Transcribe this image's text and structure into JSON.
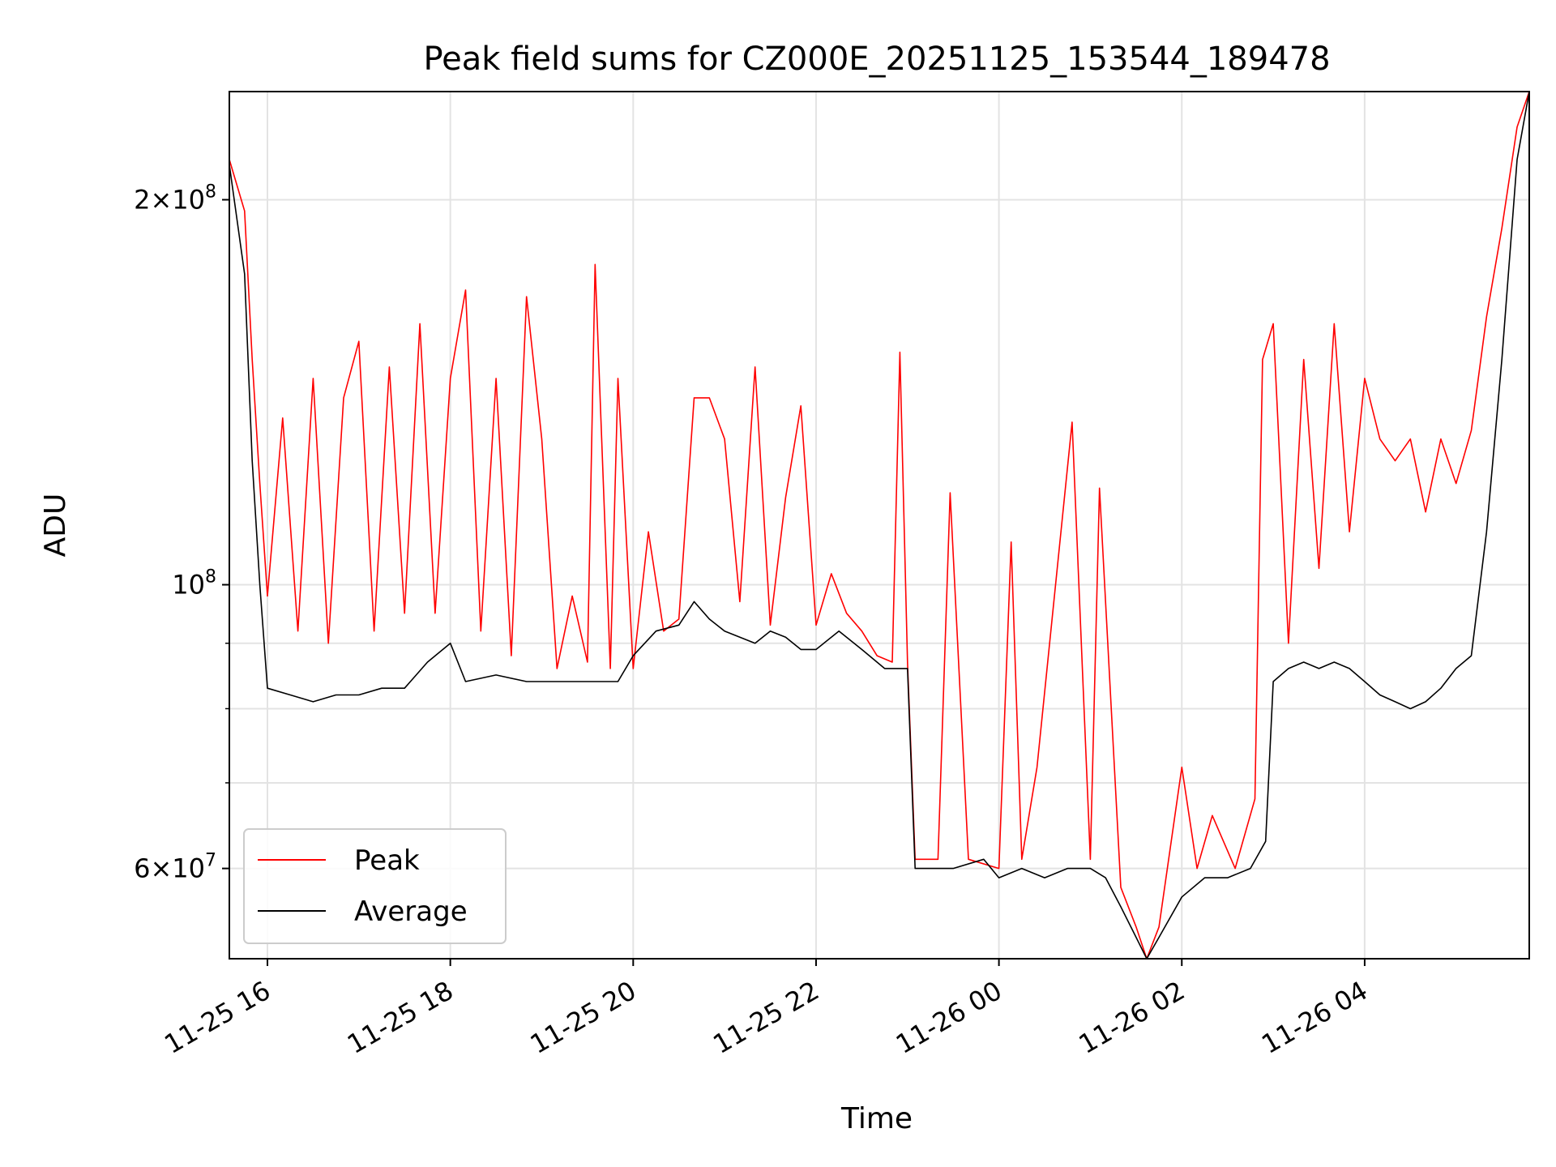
{
  "chart_data": {
    "type": "line",
    "title": "Peak field sums for CZ000E_20251125_153544_189478",
    "xlabel": "Time",
    "ylabel": "ADU",
    "yscale": "log",
    "grid": true,
    "legend_position": "lower-left",
    "xlim": [
      "2025-11-25T15:35",
      "2025-11-26T05:48"
    ],
    "ylim": [
      51000000,
      243000000
    ],
    "x_ticks": [
      "2025-11-25T16:00",
      "2025-11-25T18:00",
      "2025-11-25T20:00",
      "2025-11-25T22:00",
      "2025-11-26T00:00",
      "2025-11-26T02:00",
      "2025-11-26T04:00"
    ],
    "x_tick_labels": [
      "11-25 16",
      "11-25 18",
      "11-25 20",
      "11-25 22",
      "11-26 00",
      "11-26 02",
      "11-26 04"
    ],
    "y_major_ticks": [
      {
        "value": 60000000,
        "mantissa": "6",
        "base": "10",
        "exp": "7"
      },
      {
        "value": 100000000,
        "mantissa": "",
        "base": "10",
        "exp": "8"
      },
      {
        "value": 200000000,
        "mantissa": "2",
        "base": "10",
        "exp": "8"
      }
    ],
    "y_minor_ticks": [
      70000000,
      80000000,
      90000000
    ],
    "series": [
      {
        "name": "Peak",
        "color": "#ff0000",
        "points": [
          [
            "2025-11-25T15:35",
            215000000
          ],
          [
            "2025-11-25T15:45",
            196000000
          ],
          [
            "2025-11-25T15:50",
            150000000
          ],
          [
            "2025-11-25T15:55",
            120000000
          ],
          [
            "2025-11-25T16:00",
            98000000
          ],
          [
            "2025-11-25T16:10",
            135000000
          ],
          [
            "2025-11-25T16:20",
            92000000
          ],
          [
            "2025-11-25T16:30",
            145000000
          ],
          [
            "2025-11-25T16:40",
            90000000
          ],
          [
            "2025-11-25T16:50",
            140000000
          ],
          [
            "2025-11-25T17:00",
            155000000
          ],
          [
            "2025-11-25T17:10",
            92000000
          ],
          [
            "2025-11-25T17:20",
            148000000
          ],
          [
            "2025-11-25T17:30",
            95000000
          ],
          [
            "2025-11-25T17:40",
            160000000
          ],
          [
            "2025-11-25T17:50",
            95000000
          ],
          [
            "2025-11-25T18:00",
            145000000
          ],
          [
            "2025-11-25T18:10",
            170000000
          ],
          [
            "2025-11-25T18:20",
            92000000
          ],
          [
            "2025-11-25T18:30",
            145000000
          ],
          [
            "2025-11-25T18:40",
            88000000
          ],
          [
            "2025-11-25T18:50",
            168000000
          ],
          [
            "2025-11-25T19:00",
            130000000
          ],
          [
            "2025-11-25T19:10",
            86000000
          ],
          [
            "2025-11-25T19:20",
            98000000
          ],
          [
            "2025-11-25T19:30",
            87000000
          ],
          [
            "2025-11-25T19:35",
            178000000
          ],
          [
            "2025-11-25T19:45",
            86000000
          ],
          [
            "2025-11-25T19:50",
            145000000
          ],
          [
            "2025-11-25T20:00",
            86000000
          ],
          [
            "2025-11-25T20:10",
            110000000
          ],
          [
            "2025-11-25T20:20",
            92000000
          ],
          [
            "2025-11-25T20:30",
            94000000
          ],
          [
            "2025-11-25T20:40",
            140000000
          ],
          [
            "2025-11-25T20:50",
            140000000
          ],
          [
            "2025-11-25T21:00",
            130000000
          ],
          [
            "2025-11-25T21:10",
            97000000
          ],
          [
            "2025-11-25T21:20",
            148000000
          ],
          [
            "2025-11-25T21:30",
            93000000
          ],
          [
            "2025-11-25T21:40",
            117000000
          ],
          [
            "2025-11-25T21:50",
            138000000
          ],
          [
            "2025-11-25T22:00",
            93000000
          ],
          [
            "2025-11-25T22:10",
            102000000
          ],
          [
            "2025-11-25T22:20",
            95000000
          ],
          [
            "2025-11-25T22:30",
            92000000
          ],
          [
            "2025-11-25T22:40",
            88000000
          ],
          [
            "2025-11-25T22:50",
            87000000
          ],
          [
            "2025-11-25T22:55",
            152000000
          ],
          [
            "2025-11-25T23:00",
            87000000
          ],
          [
            "2025-11-25T23:05",
            61000000
          ],
          [
            "2025-11-25T23:20",
            61000000
          ],
          [
            "2025-11-25T23:28",
            118000000
          ],
          [
            "2025-11-25T23:40",
            61000000
          ],
          [
            "2025-11-26T00:00",
            60000000
          ],
          [
            "2025-11-26T00:08",
            108000000
          ],
          [
            "2025-11-26T00:15",
            61000000
          ],
          [
            "2025-11-26T00:25",
            72000000
          ],
          [
            "2025-11-26T00:48",
            134000000
          ],
          [
            "2025-11-26T01:00",
            61000000
          ],
          [
            "2025-11-26T01:06",
            119000000
          ],
          [
            "2025-11-26T01:20",
            58000000
          ],
          [
            "2025-11-26T01:30",
            54000000
          ],
          [
            "2025-11-26T01:37",
            51000000
          ],
          [
            "2025-11-26T01:45",
            54000000
          ],
          [
            "2025-11-26T02:00",
            72000000
          ],
          [
            "2025-11-26T02:10",
            60000000
          ],
          [
            "2025-11-26T02:20",
            66000000
          ],
          [
            "2025-11-26T02:35",
            60000000
          ],
          [
            "2025-11-26T02:48",
            68000000
          ],
          [
            "2025-11-26T02:53",
            150000000
          ],
          [
            "2025-11-26T03:00",
            160000000
          ],
          [
            "2025-11-26T03:10",
            90000000
          ],
          [
            "2025-11-26T03:20",
            150000000
          ],
          [
            "2025-11-26T03:30",
            103000000
          ],
          [
            "2025-11-26T03:40",
            160000000
          ],
          [
            "2025-11-26T03:50",
            110000000
          ],
          [
            "2025-11-26T04:00",
            145000000
          ],
          [
            "2025-11-26T04:10",
            130000000
          ],
          [
            "2025-11-26T04:20",
            125000000
          ],
          [
            "2025-11-26T04:30",
            130000000
          ],
          [
            "2025-11-26T04:40",
            114000000
          ],
          [
            "2025-11-26T04:50",
            130000000
          ],
          [
            "2025-11-26T05:00",
            120000000
          ],
          [
            "2025-11-26T05:10",
            132000000
          ],
          [
            "2025-11-26T05:20",
            162000000
          ],
          [
            "2025-11-26T05:30",
            190000000
          ],
          [
            "2025-11-26T05:40",
            228000000
          ],
          [
            "2025-11-26T05:48",
            243000000
          ]
        ]
      },
      {
        "name": "Average",
        "color": "#000000",
        "points": [
          [
            "2025-11-25T15:35",
            213000000
          ],
          [
            "2025-11-25T15:45",
            175000000
          ],
          [
            "2025-11-25T15:50",
            125000000
          ],
          [
            "2025-11-25T15:55",
            100000000
          ],
          [
            "2025-11-25T16:00",
            83000000
          ],
          [
            "2025-11-25T16:15",
            82000000
          ],
          [
            "2025-11-25T16:30",
            81000000
          ],
          [
            "2025-11-25T16:45",
            82000000
          ],
          [
            "2025-11-25T17:00",
            82000000
          ],
          [
            "2025-11-25T17:15",
            83000000
          ],
          [
            "2025-11-25T17:30",
            83000000
          ],
          [
            "2025-11-25T17:45",
            87000000
          ],
          [
            "2025-11-25T18:00",
            90000000
          ],
          [
            "2025-11-25T18:10",
            84000000
          ],
          [
            "2025-11-25T18:30",
            85000000
          ],
          [
            "2025-11-25T18:50",
            84000000
          ],
          [
            "2025-11-25T19:00",
            84000000
          ],
          [
            "2025-11-25T19:30",
            84000000
          ],
          [
            "2025-11-25T19:50",
            84000000
          ],
          [
            "2025-11-25T20:00",
            88000000
          ],
          [
            "2025-11-25T20:15",
            92000000
          ],
          [
            "2025-11-25T20:30",
            93000000
          ],
          [
            "2025-11-25T20:40",
            97000000
          ],
          [
            "2025-11-25T20:50",
            94000000
          ],
          [
            "2025-11-25T21:00",
            92000000
          ],
          [
            "2025-11-25T21:10",
            91000000
          ],
          [
            "2025-11-25T21:20",
            90000000
          ],
          [
            "2025-11-25T21:30",
            92000000
          ],
          [
            "2025-11-25T21:40",
            91000000
          ],
          [
            "2025-11-25T21:50",
            89000000
          ],
          [
            "2025-11-25T22:00",
            89000000
          ],
          [
            "2025-11-25T22:15",
            92000000
          ],
          [
            "2025-11-25T22:30",
            89000000
          ],
          [
            "2025-11-25T22:45",
            86000000
          ],
          [
            "2025-11-25T23:00",
            86000000
          ],
          [
            "2025-11-25T23:05",
            60000000
          ],
          [
            "2025-11-25T23:30",
            60000000
          ],
          [
            "2025-11-25T23:50",
            61000000
          ],
          [
            "2025-11-26T00:00",
            59000000
          ],
          [
            "2025-11-26T00:15",
            60000000
          ],
          [
            "2025-11-26T00:30",
            59000000
          ],
          [
            "2025-11-26T00:45",
            60000000
          ],
          [
            "2025-11-26T01:00",
            60000000
          ],
          [
            "2025-11-26T01:10",
            59000000
          ],
          [
            "2025-11-26T01:20",
            56000000
          ],
          [
            "2025-11-26T01:30",
            53000000
          ],
          [
            "2025-11-26T01:37",
            51000000
          ],
          [
            "2025-11-26T01:45",
            53000000
          ],
          [
            "2025-11-26T02:00",
            57000000
          ],
          [
            "2025-11-26T02:15",
            59000000
          ],
          [
            "2025-11-26T02:30",
            59000000
          ],
          [
            "2025-11-26T02:45",
            60000000
          ],
          [
            "2025-11-26T02:55",
            63000000
          ],
          [
            "2025-11-26T03:00",
            84000000
          ],
          [
            "2025-11-26T03:10",
            86000000
          ],
          [
            "2025-11-26T03:20",
            87000000
          ],
          [
            "2025-11-26T03:30",
            86000000
          ],
          [
            "2025-11-26T03:40",
            87000000
          ],
          [
            "2025-11-26T03:50",
            86000000
          ],
          [
            "2025-11-26T04:00",
            84000000
          ],
          [
            "2025-11-26T04:10",
            82000000
          ],
          [
            "2025-11-26T04:20",
            81000000
          ],
          [
            "2025-11-26T04:30",
            80000000
          ],
          [
            "2025-11-26T04:40",
            81000000
          ],
          [
            "2025-11-26T04:50",
            83000000
          ],
          [
            "2025-11-26T05:00",
            86000000
          ],
          [
            "2025-11-26T05:10",
            88000000
          ],
          [
            "2025-11-26T05:20",
            110000000
          ],
          [
            "2025-11-26T05:30",
            150000000
          ],
          [
            "2025-11-26T05:40",
            215000000
          ],
          [
            "2025-11-26T05:48",
            243000000
          ]
        ]
      }
    ]
  }
}
